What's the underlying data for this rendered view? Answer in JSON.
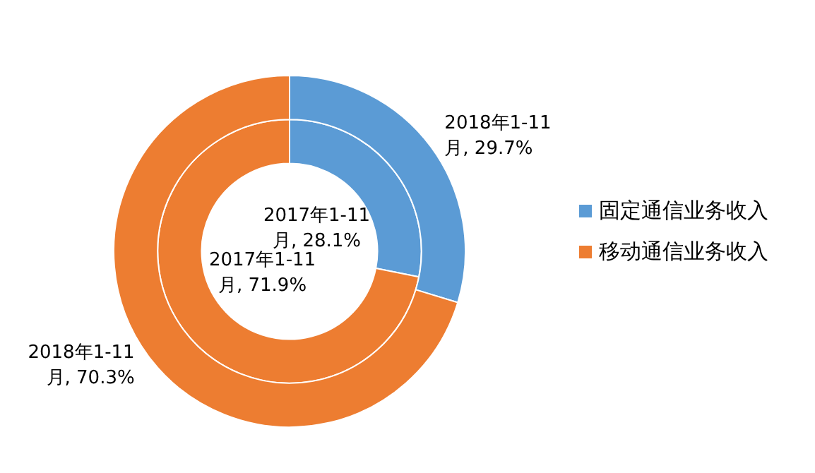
{
  "chart_data": {
    "type": "donut",
    "categories": [
      "固定通信业务收入",
      "移动通信业务收入"
    ],
    "colors": [
      "#5b9bd5",
      "#ed7d31"
    ],
    "series": [
      {
        "values": [
          28.1,
          71.9
        ],
        "value_labels": [
          "2017年1-11月, 28.1%",
          "2017年1-11月, 71.9%"
        ]
      },
      {
        "values": [
          29.7,
          70.3
        ],
        "value_labels": [
          "2018年1-11月, 29.7%",
          "2018年1-11月, 70.3%"
        ]
      }
    ],
    "legend": "right"
  }
}
